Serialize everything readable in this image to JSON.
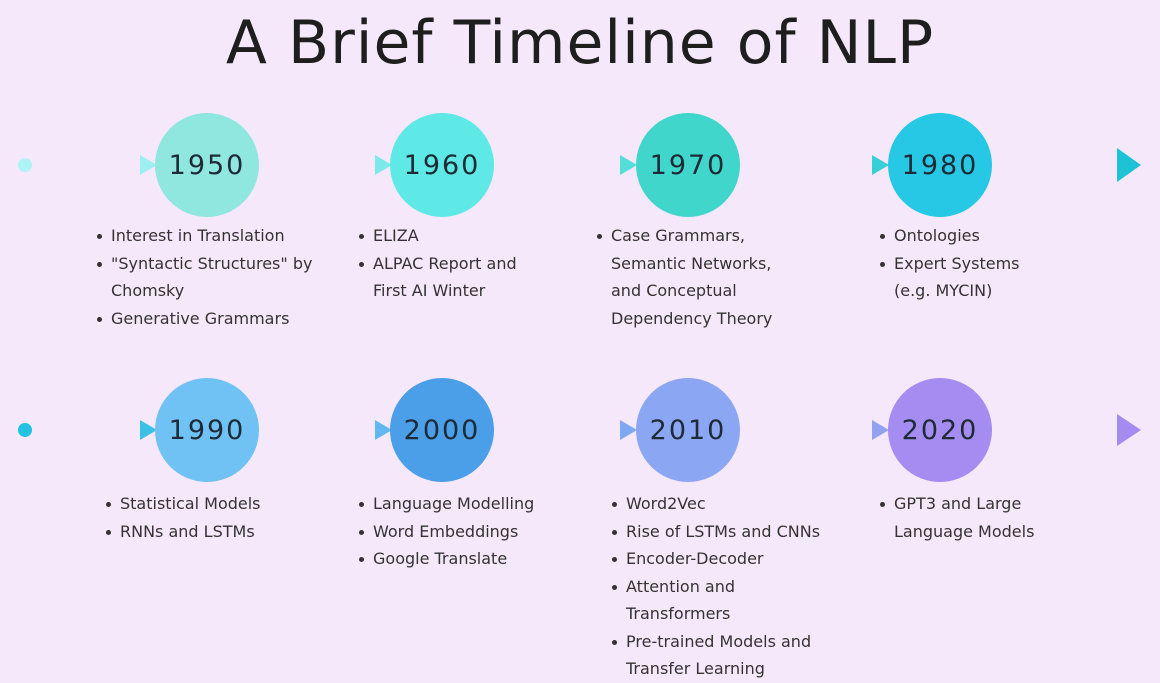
{
  "title": "A Brief Timeline of NLP",
  "rows": [
    {
      "line_color": "#8ee6ef",
      "end_color": "#2cc6d8",
      "decades": [
        {
          "year": "1950",
          "color": "#8fe7df",
          "items": [
            "Interest in Translation",
            "\"Syntactic Structures\" by Chomsky",
            "Generative Grammars"
          ]
        },
        {
          "year": "1960",
          "color": "#5ee9e6",
          "items": [
            "ELIZA",
            "ALPAC Report and First AI Winter"
          ]
        },
        {
          "year": "1970",
          "color": "#40d6cc",
          "items": [
            "Case Grammars, Semantic Networks, and Conceptual Dependency Theory"
          ]
        },
        {
          "year": "1980",
          "color": "#26c8e6",
          "items": [
            "Ontologies",
            "Expert Systems (e.g. MYCIN)"
          ]
        }
      ]
    },
    {
      "line_color": "#3fc4e4",
      "end_color": "#a58cf0",
      "decades": [
        {
          "year": "1990",
          "color": "#70c2f5",
          "items": [
            "Statistical Models",
            "RNNs and LSTMs"
          ]
        },
        {
          "year": "2000",
          "color": "#4b9fe8",
          "items": [
            "Language Modelling",
            "Word Embeddings",
            "Google Translate"
          ]
        },
        {
          "year": "2010",
          "color": "#8ba7f3",
          "items": [
            "Word2Vec",
            "Rise of LSTMs and CNNs",
            "Encoder-Decoder",
            "Attention and Transformers",
            "Pre-trained Models and Transfer Learning"
          ]
        },
        {
          "year": "2020",
          "color": "#a58cf0",
          "items": [
            "GPT3 and Large Language Models"
          ]
        }
      ]
    }
  ]
}
